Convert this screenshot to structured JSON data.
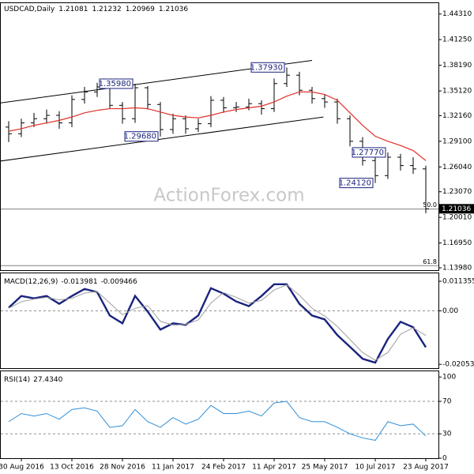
{
  "chart_data": [
    {
      "type": "ohlc",
      "symbol": "USDCAD,Daily",
      "quote": {
        "open": 1.21081,
        "high": 1.21232,
        "low": 1.20969,
        "close": 1.21036
      },
      "watermark": "ActionForex.com",
      "categories": [
        null,
        "30 Aug 2016",
        null,
        null,
        null,
        "13 Oct 2016",
        null,
        null,
        null,
        "28 Nov 2016",
        null,
        null,
        null,
        "11 Jan 2017",
        null,
        null,
        null,
        "24 Feb 2017",
        null,
        null,
        null,
        "11 Apr 2017",
        null,
        null,
        null,
        "25 May 2017",
        null,
        null,
        null,
        "10 Jul 2017",
        null,
        null,
        null,
        "23 Aug 2017"
      ],
      "color": "#000000",
      "open": [
        1.308,
        1.3,
        1.313,
        1.318,
        1.322,
        1.313,
        1.341,
        1.35,
        1.356,
        1.334,
        1.318,
        1.355,
        1.335,
        1.305,
        1.318,
        1.306,
        1.312,
        1.34,
        1.331,
        1.332,
        1.336,
        1.33,
        1.36,
        1.37,
        1.352,
        1.342,
        1.338,
        1.318,
        1.291,
        1.268,
        1.25,
        1.272,
        1.262,
        1.258
      ],
      "high": [
        1.315,
        1.318,
        1.325,
        1.329,
        1.327,
        1.346,
        1.356,
        1.361,
        1.359,
        1.338,
        1.3598,
        1.357,
        1.338,
        1.324,
        1.322,
        1.318,
        1.345,
        1.344,
        1.338,
        1.342,
        1.34,
        1.366,
        1.3793,
        1.374,
        1.356,
        1.347,
        1.342,
        1.322,
        1.296,
        1.272,
        1.2777,
        1.276,
        1.272,
        1.262
      ],
      "low": [
        1.29,
        1.296,
        1.308,
        1.312,
        1.306,
        1.308,
        1.336,
        1.344,
        1.33,
        1.312,
        1.313,
        1.329,
        1.2968,
        1.3,
        1.3,
        1.302,
        1.308,
        1.325,
        1.326,
        1.328,
        1.323,
        1.326,
        1.356,
        1.346,
        1.336,
        1.331,
        1.312,
        1.285,
        1.262,
        1.2412,
        1.246,
        1.256,
        1.252,
        1.205
      ],
      "close": [
        1.3,
        1.313,
        1.318,
        1.322,
        1.313,
        1.341,
        1.35,
        1.356,
        1.334,
        1.318,
        1.355,
        1.335,
        1.305,
        1.318,
        1.306,
        1.312,
        1.34,
        1.331,
        1.332,
        1.336,
        1.33,
        1.36,
        1.37,
        1.352,
        1.342,
        1.338,
        1.318,
        1.291,
        1.268,
        1.25,
        1.272,
        1.262,
        1.258,
        1.21036
      ],
      "ma": {
        "color": "#e0302a",
        "values": [
          1.303,
          1.306,
          1.31,
          1.313,
          1.316,
          1.32,
          1.325,
          1.328,
          1.33,
          1.33,
          1.331,
          1.33,
          1.326,
          1.322,
          1.32,
          1.319,
          1.322,
          1.326,
          1.329,
          1.331,
          1.333,
          1.338,
          1.345,
          1.35,
          1.35,
          1.347,
          1.34,
          1.325,
          1.31,
          1.297,
          1.291,
          1.286,
          1.28,
          1.268
        ]
      },
      "trend_lines": [
        {
          "x": [
            -0.7,
            24
          ],
          "y": [
            1.3367,
            1.3876
          ]
        },
        {
          "x": [
            -0.7,
            24.9
          ],
          "y": [
            1.2673,
            1.32
          ]
        }
      ],
      "fib_levels": [
        {
          "name": "50.0",
          "price": 1.21
        },
        {
          "name": "61.8",
          "price": 1.1424
        }
      ],
      "annotations": [
        {
          "label": "1.35980",
          "index": 10,
          "value": 1.3598
        },
        {
          "label": "1.29680",
          "index": 12,
          "value": 1.2968
        },
        {
          "label": "1.37930",
          "index": 22,
          "value": 1.3793
        },
        {
          "label": "1.24120",
          "index": 29,
          "value": 1.2412
        },
        {
          "label": "1.27770",
          "index": 30,
          "value": 1.2777
        }
      ],
      "ylim": [
        1.137,
        1.457
      ],
      "yticks": [
        {
          "value": 1.4431,
          "label": "1.44310"
        },
        {
          "value": 1.4125,
          "label": "1.41250"
        },
        {
          "value": 1.3819,
          "label": "1.38190"
        },
        {
          "value": 1.3512,
          "label": "1.35120"
        },
        {
          "value": 1.3216,
          "label": "1.32160"
        },
        {
          "value": 1.291,
          "label": "1.29100"
        },
        {
          "value": 1.2604,
          "label": "1.26040"
        },
        {
          "value": 1.2307,
          "label": "1.23070"
        },
        {
          "value": 1.2001,
          "label": "1.20010"
        },
        {
          "value": 1.1695,
          "label": "1.16950"
        },
        {
          "value": 1.1398,
          "label": "1.13980"
        }
      ]
    },
    {
      "type": "line",
      "title": "MACD(12,26,9)",
      "series": [
        {
          "color": "#1a237e",
          "bold": true,
          "values": [
            0.0012,
            0.0057,
            0.0048,
            0.0057,
            0.0027,
            0.0057,
            0.0084,
            0.0072,
            -0.0018,
            -0.0048,
            0.0057,
            -0.0003,
            -0.0072,
            -0.0048,
            -0.0054,
            -0.0018,
            0.0087,
            0.0066,
            0.0036,
            0.0018,
            0.0057,
            0.0102,
            0.0102,
            0.0027,
            -0.0018,
            -0.0033,
            -0.0093,
            -0.0138,
            -0.0184,
            -0.0199,
            -0.0108,
            -0.0042,
            -0.0063,
            -0.013981
          ]
        },
        {
          "color": "#a0a0a0",
          "bold": false,
          "values": [
            0.001,
            0.0035,
            0.0045,
            0.0052,
            0.0042,
            0.0048,
            0.0068,
            0.0074,
            0.003,
            -0.0015,
            0.001,
            0.002,
            -0.004,
            -0.0055,
            -0.0052,
            -0.0035,
            0.003,
            0.007,
            0.0052,
            0.003,
            0.004,
            0.008,
            0.01,
            0.006,
            0.001,
            -0.002,
            -0.006,
            -0.011,
            -0.016,
            -0.019,
            -0.016,
            -0.009,
            -0.0065,
            -0.009466
          ]
        }
      ],
      "ylim": [
        -0.022,
        0.0147
      ],
      "yticks": [
        0.011355,
        {
          "value": 0,
          "label": "0.00"
        },
        -0.020531
      ],
      "levels": [
        0
      ]
    },
    {
      "type": "line",
      "title": "RSI(14)",
      "header_value": "27.4340",
      "series": [
        {
          "color": "#2f8fd8",
          "bold": false,
          "values": [
            45,
            55,
            52,
            55,
            48,
            60,
            62,
            58,
            38,
            40,
            60,
            45,
            38,
            50,
            42,
            48,
            65,
            55,
            55,
            58,
            52,
            68,
            70,
            50,
            45,
            45,
            38,
            30,
            25,
            22,
            45,
            40,
            42,
            27.434
          ]
        }
      ],
      "ylim": [
        0,
        108
      ],
      "yticks": [
        100,
        70,
        30,
        0
      ],
      "levels": [
        70,
        30
      ]
    }
  ]
}
